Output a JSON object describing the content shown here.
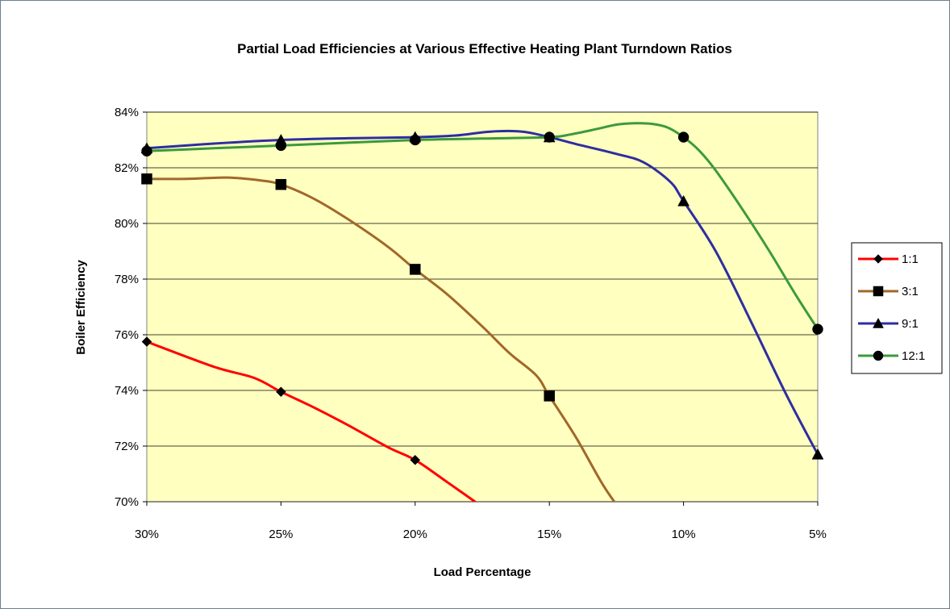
{
  "chart_data": {
    "type": "line",
    "title": "Partial Load Efficiencies at Various Effective Heating Plant Turndown Ratios",
    "xlabel": "Load Percentage",
    "ylabel": "Boiler Efficiency",
    "x_categories": [
      "30%",
      "25%",
      "20%",
      "15%",
      "10%",
      "5%"
    ],
    "x_range": [
      30,
      5
    ],
    "ylim": [
      70,
      84
    ],
    "y_ticks": [
      70,
      72,
      74,
      76,
      78,
      80,
      82,
      84
    ],
    "y_tick_labels": [
      "70%",
      "72%",
      "74%",
      "76%",
      "78%",
      "80%",
      "82%",
      "84%"
    ],
    "grid": "horizontal",
    "legend_position": "right",
    "plot_background": "#ffffc0",
    "series": [
      {
        "name": "1:1",
        "color": "#ff0000",
        "marker": "diamond",
        "marker_x": [
          30,
          25,
          20
        ],
        "marker_y": [
          75.75,
          73.95,
          71.5
        ],
        "curve_x": [
          30,
          27.5,
          26,
          25,
          23.8,
          22.5,
          21,
          20,
          18.8,
          17.4
        ],
        "curve_y": [
          75.75,
          74.85,
          74.45,
          73.95,
          73.4,
          72.75,
          71.95,
          71.5,
          70.7,
          69.75
        ]
      },
      {
        "name": "3:1",
        "color": "#a0682a",
        "marker": "square",
        "marker_x": [
          30,
          25,
          20,
          15
        ],
        "marker_y": [
          81.6,
          81.4,
          78.35,
          73.8
        ],
        "curve_x": [
          30,
          28.5,
          27,
          25.8,
          25,
          23.8,
          22.5,
          21,
          20,
          18.8,
          17.5,
          16.5,
          15.5,
          15,
          14,
          13,
          12.2
        ],
        "curve_y": [
          81.6,
          81.6,
          81.65,
          81.55,
          81.4,
          80.9,
          80.15,
          79.15,
          78.35,
          77.45,
          76.3,
          75.35,
          74.55,
          73.8,
          72.3,
          70.6,
          69.5
        ]
      },
      {
        "name": "9:1",
        "color": "#2e2ea0",
        "marker": "triangle",
        "marker_x": [
          30,
          25,
          20,
          15,
          10,
          5
        ],
        "marker_y": [
          82.7,
          83.0,
          83.1,
          83.1,
          80.8,
          71.7
        ],
        "curve_x": [
          30,
          27.5,
          25,
          22.5,
          20,
          18.5,
          17.2,
          16,
          15,
          14,
          12.5,
          11.5,
          10.5,
          10,
          8.8,
          7.5,
          6.2,
          5
        ],
        "curve_y": [
          82.7,
          82.87,
          83.0,
          83.06,
          83.1,
          83.16,
          83.3,
          83.3,
          83.1,
          82.85,
          82.5,
          82.2,
          81.5,
          80.8,
          79.0,
          76.5,
          73.9,
          71.7
        ]
      },
      {
        "name": "12:1",
        "color": "#3c9a3c",
        "marker": "circle",
        "marker_x": [
          30,
          25,
          20,
          15,
          10,
          5
        ],
        "marker_y": [
          82.6,
          82.8,
          83.0,
          83.1,
          83.1,
          76.2
        ],
        "curve_x": [
          30,
          27.5,
          25,
          22.5,
          20,
          17.5,
          15,
          14.2,
          13.2,
          12.5,
          11.8,
          11.2,
          10.6,
          10,
          9.4,
          8.8,
          7.8,
          6.8,
          5.8,
          5
        ],
        "curve_y": [
          82.6,
          82.7,
          82.8,
          82.9,
          83.0,
          83.05,
          83.1,
          83.2,
          83.4,
          83.55,
          83.6,
          83.58,
          83.45,
          83.1,
          82.6,
          81.9,
          80.5,
          79.0,
          77.4,
          76.2
        ]
      }
    ]
  }
}
